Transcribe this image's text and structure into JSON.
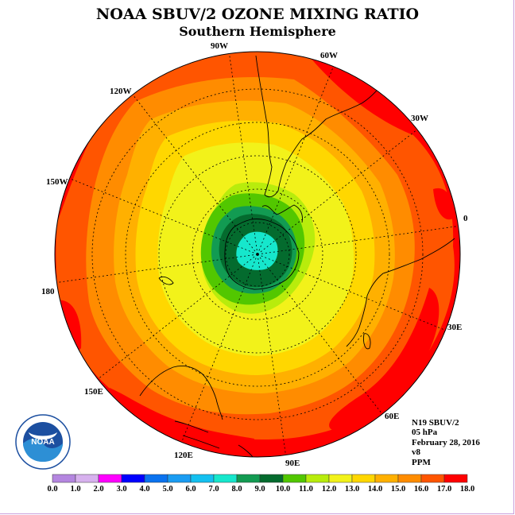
{
  "title": "NOAA SBUV/2 OZONE MIXING RATIO",
  "subtitle": "Southern Hemisphere",
  "longitude_labels": [
    "90W",
    "60W",
    "30W",
    "0",
    "30E",
    "60E",
    "90E",
    "120E",
    "150E",
    "180",
    "150W",
    "120W"
  ],
  "info": {
    "satellite": "N19 SBUV/2",
    "level": "05 hPa",
    "date": "February 28, 2016",
    "version": "v8",
    "units": "PPM"
  },
  "logo": {
    "name": "noaa-logo",
    "text": "NOAA",
    "ring_text": "NATIONAL OCEANIC AND ATMOSPHERIC ADMINISTRATION · U.S. DEPARTMENT OF COMMERCE"
  },
  "colorbar": {
    "labels": [
      "0.0",
      "1.0",
      "2.0",
      "3.0",
      "4.0",
      "5.0",
      "6.0",
      "7.0",
      "8.0",
      "9.0",
      "10.0",
      "11.0",
      "12.0",
      "13.0",
      "14.0",
      "15.0",
      "16.0",
      "17.0",
      "18.0"
    ],
    "colors": [
      "#b486e0",
      "#d7b1ee",
      "#ff00ff",
      "#0000ff",
      "#0a72ef",
      "#1a9cf2",
      "#13c0f0",
      "#16e7cc",
      "#129b52",
      "#046b2e",
      "#52c700",
      "#b8ec0c",
      "#f2f21a",
      "#ffd700",
      "#ffb000",
      "#ff8c00",
      "#ff5500",
      "#ff0000",
      "#8b5a3c"
    ]
  },
  "colors": {
    "red": "#ff0000",
    "orange_red": "#ff5500",
    "orange": "#ff8c00",
    "amber": "#ffb000",
    "gold": "#ffd700",
    "yellow": "#f2f21a",
    "yellow_green": "#b8ec0c",
    "green": "#52c700",
    "dark_green": "#046b2e",
    "mid_green": "#129b52",
    "cyan": "#16e7cc",
    "border": "#c9a0dc"
  }
}
